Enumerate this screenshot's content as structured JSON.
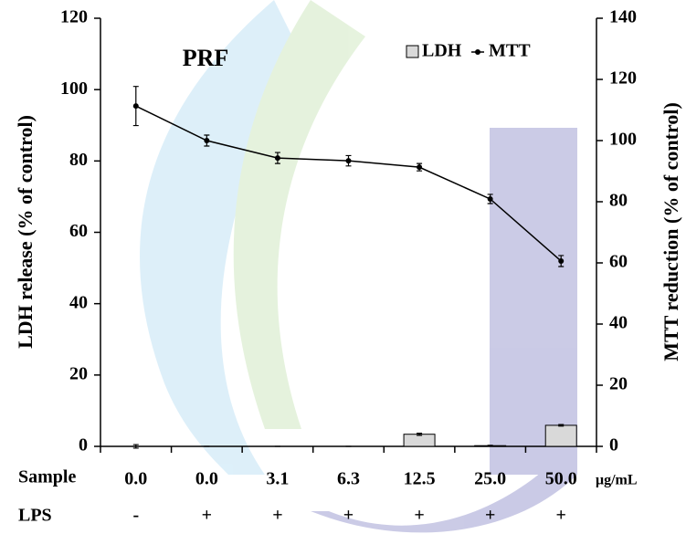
{
  "chart_data": {
    "type": "bar_line",
    "title": "PRF",
    "ylabel": "LDH release (% of control)",
    "y2label": "MTT reduction (% of control)",
    "xlabel": "Sample",
    "xunit": "μg/mL",
    "categories": [
      "0.0",
      "0.0",
      "3.1",
      "6.3",
      "12.5",
      "25.0",
      "50.0"
    ],
    "lps_label": "LPS",
    "lps": [
      "-",
      "+",
      "+",
      "+",
      "+",
      "+",
      "+"
    ],
    "ylim": [
      0,
      120
    ],
    "yticks": [
      0,
      20,
      40,
      60,
      80,
      100,
      120
    ],
    "y2lim": [
      0,
      140
    ],
    "y2ticks": [
      0,
      20,
      40,
      60,
      80,
      100,
      120,
      140
    ],
    "legend": "upper right",
    "series": [
      {
        "name": "LDH",
        "type": "bar",
        "color": "#d9d9d9",
        "values": [
          0,
          0,
          0,
          0,
          3.4,
          0.2,
          5.9
        ],
        "errors": [
          0.5,
          0,
          0,
          0,
          0.3,
          0.1,
          0.2
        ]
      },
      {
        "name": "MTT",
        "type": "line",
        "axis": "y2",
        "color": "#000000",
        "values": [
          111.3,
          100,
          94.3,
          93.4,
          91.3,
          80.9,
          60.6
        ],
        "errors": [
          6.4,
          1.8,
          1.8,
          1.7,
          1.2,
          1.5,
          1.8
        ]
      }
    ]
  }
}
